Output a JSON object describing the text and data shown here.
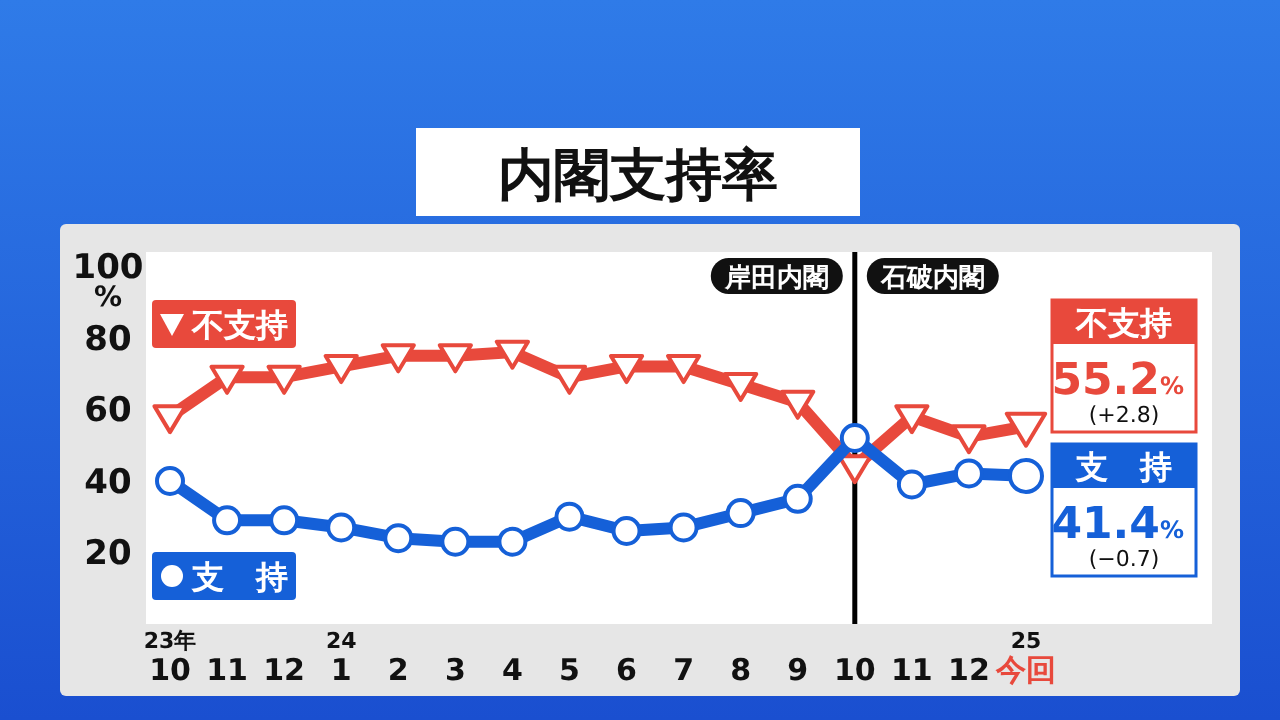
{
  "chart_data": {
    "type": "line",
    "title": "内閣支持率",
    "categories": [
      "23年\n10",
      "11",
      "12",
      "24\n1",
      "2",
      "3",
      "4",
      "5",
      "6",
      "7",
      "8",
      "9",
      "10",
      "11",
      "12",
      "25\n今回"
    ],
    "series": [
      {
        "name": "不支持",
        "color": "#e8493c",
        "marker": "triangle",
        "values": [
          58,
          69,
          69,
          72,
          75,
          75,
          76,
          69,
          72,
          72,
          67,
          62,
          44,
          58,
          52.4,
          55.2
        ],
        "value_labels": [
          null,
          null,
          null,
          null,
          null,
          null,
          null,
          null,
          null,
          null,
          null,
          null,
          null,
          null,
          null,
          "55.2%"
        ]
      },
      {
        "name": "支　持",
        "color": "#1560d8",
        "marker": "circle",
        "values": [
          40,
          29,
          29,
          27,
          24,
          23,
          23,
          30,
          26,
          27,
          31,
          35,
          52,
          39,
          42.1,
          41.4
        ],
        "value_labels": [
          null,
          null,
          null,
          null,
          null,
          null,
          null,
          null,
          null,
          null,
          null,
          null,
          null,
          null,
          null,
          "41.4%"
        ]
      }
    ],
    "ylim": [
      0,
      104
    ],
    "yticks": [
      20,
      40,
      60,
      80,
      {
        "value": 100,
        "label": "100\n%"
      }
    ],
    "ref_lines": [
      {
        "axis": "x",
        "value": "10",
        "color": "#000000",
        "label": "岸田内閣"
      }
    ],
    "annotations": [
      "(+2.8)",
      "(−0.7)",
      "石破内閣"
    ],
    "grid": false,
    "legend": "left"
  }
}
